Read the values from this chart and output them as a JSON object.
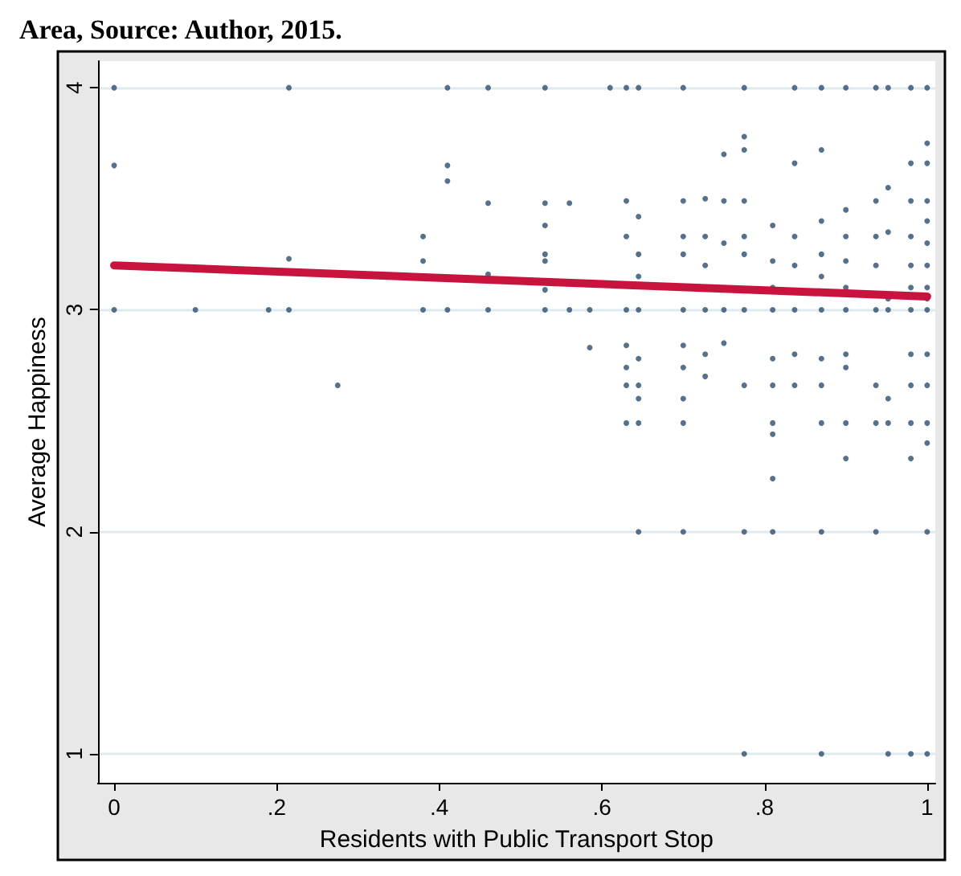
{
  "chart_data": {
    "type": "scatter",
    "xlabel": "Residents with Public Transport Stop",
    "ylabel": "Average Happiness",
    "annotations": [
      "Area, Source: Author, 2015."
    ],
    "xlim": [
      -0.02,
      1.01
    ],
    "ylim": [
      0.87,
      4.12
    ],
    "xticks": [
      0,
      {
        "value": 0.2,
        "label": ".2"
      },
      {
        "value": 0.4,
        "label": ".4"
      },
      {
        "value": 0.6,
        "label": ".6"
      },
      {
        "value": 0.8,
        "label": ".8"
      },
      1
    ],
    "yticks": [
      1,
      2,
      3,
      4
    ],
    "grid": "y",
    "marker": "circle",
    "series": [
      {
        "type": "scatter",
        "color": "#2e4d6e",
        "x": [
          0,
          0,
          0,
          0.1,
          0.19,
          0.215,
          0.215,
          0.215,
          0.275,
          0.38,
          0.38,
          0.38,
          0.41,
          0.41,
          0.41,
          0.41,
          0.46,
          0.46,
          0.46,
          0.46,
          0.53,
          0.53,
          0.53,
          0.53,
          0.53,
          0.53,
          0.53,
          0.56,
          0.56,
          0.585,
          0.585,
          0.61,
          0.63,
          0.63,
          0.63,
          0.63,
          0.63,
          0.63,
          0.63,
          0.63,
          0.645,
          0.645,
          0.645,
          0.645,
          0.645,
          0.645,
          0.645,
          0.645,
          0.645,
          0.645,
          0.7,
          0.7,
          0.7,
          0.7,
          0.7,
          0.7,
          0.7,
          0.7,
          0.7,
          0.7,
          0.727,
          0.727,
          0.727,
          0.727,
          0.727,
          0.727,
          0.75,
          0.75,
          0.75,
          0.75,
          0.75,
          0.775,
          0.775,
          0.775,
          0.775,
          0.775,
          0.775,
          0.775,
          0.775,
          0.775,
          0.775,
          0.81,
          0.81,
          0.81,
          0.81,
          0.81,
          0.81,
          0.81,
          0.81,
          0.81,
          0.81,
          0.837,
          0.837,
          0.837,
          0.837,
          0.837,
          0.837,
          0.837,
          0.87,
          0.87,
          0.87,
          0.87,
          0.87,
          0.87,
          0.87,
          0.87,
          0.87,
          0.87,
          0.87,
          0.9,
          0.9,
          0.9,
          0.9,
          0.9,
          0.9,
          0.9,
          0.9,
          0.9,
          0.9,
          0.937,
          0.937,
          0.937,
          0.937,
          0.937,
          0.937,
          0.937,
          0.937,
          0.952,
          0.952,
          0.952,
          0.952,
          0.952,
          0.952,
          0.952,
          0.952,
          0.98,
          0.98,
          0.98,
          0.98,
          0.98,
          0.98,
          0.98,
          0.98,
          0.98,
          0.98,
          0.98,
          0.98,
          1,
          1,
          1,
          1,
          1,
          1,
          1,
          1,
          1,
          1,
          1,
          1,
          1,
          1,
          1,
          1
        ],
        "values": [
          4,
          3.65,
          3,
          3,
          3,
          4,
          3.23,
          3,
          2.66,
          3.33,
          3.22,
          3,
          4,
          3.65,
          3.58,
          3,
          4,
          3.48,
          3.16,
          3,
          4,
          3.48,
          3.38,
          3.25,
          3.22,
          3.09,
          3,
          3.48,
          3,
          3,
          2.83,
          4,
          4,
          3.49,
          3.33,
          3,
          2.84,
          2.74,
          2.66,
          2.49,
          4,
          3.42,
          3.25,
          3.15,
          3,
          2.78,
          2.66,
          2.6,
          2.49,
          2,
          4,
          3.49,
          3.33,
          3.25,
          3,
          2.84,
          2.74,
          2.6,
          2.49,
          2,
          3.5,
          3.33,
          3.2,
          3,
          2.8,
          2.7,
          3.7,
          3.49,
          3.3,
          3,
          2.85,
          4,
          3.78,
          3.72,
          3.49,
          3.33,
          3.25,
          3,
          2.66,
          2,
          1,
          3.38,
          3.22,
          3.1,
          3,
          2.78,
          2.66,
          2.49,
          2.44,
          2.24,
          2,
          4,
          3.66,
          3.33,
          3.2,
          3,
          2.8,
          2.66,
          4,
          3.72,
          3.4,
          3.25,
          3.15,
          3,
          2.78,
          2.66,
          2.49,
          2,
          1,
          4,
          3.45,
          3.33,
          3.22,
          3.1,
          3,
          2.8,
          2.74,
          2.49,
          2.33,
          4,
          3.49,
          3.33,
          3.2,
          3,
          2.66,
          2.49,
          2,
          4,
          3.55,
          3.35,
          3.05,
          3,
          2.6,
          2.49,
          1,
          4,
          3.66,
          3.49,
          3.33,
          3.2,
          3.1,
          3,
          2.8,
          2.66,
          2.49,
          2.33,
          1,
          4,
          3.75,
          3.66,
          3.49,
          3.4,
          3.3,
          3.2,
          3.1,
          3.05,
          3,
          2.8,
          2.66,
          2.49,
          2.4,
          2,
          1
        ]
      },
      {
        "type": "line",
        "color": "#c8133e",
        "marker": "none",
        "x": [
          0,
          1
        ],
        "values": [
          3.2,
          3.06
        ]
      }
    ]
  }
}
